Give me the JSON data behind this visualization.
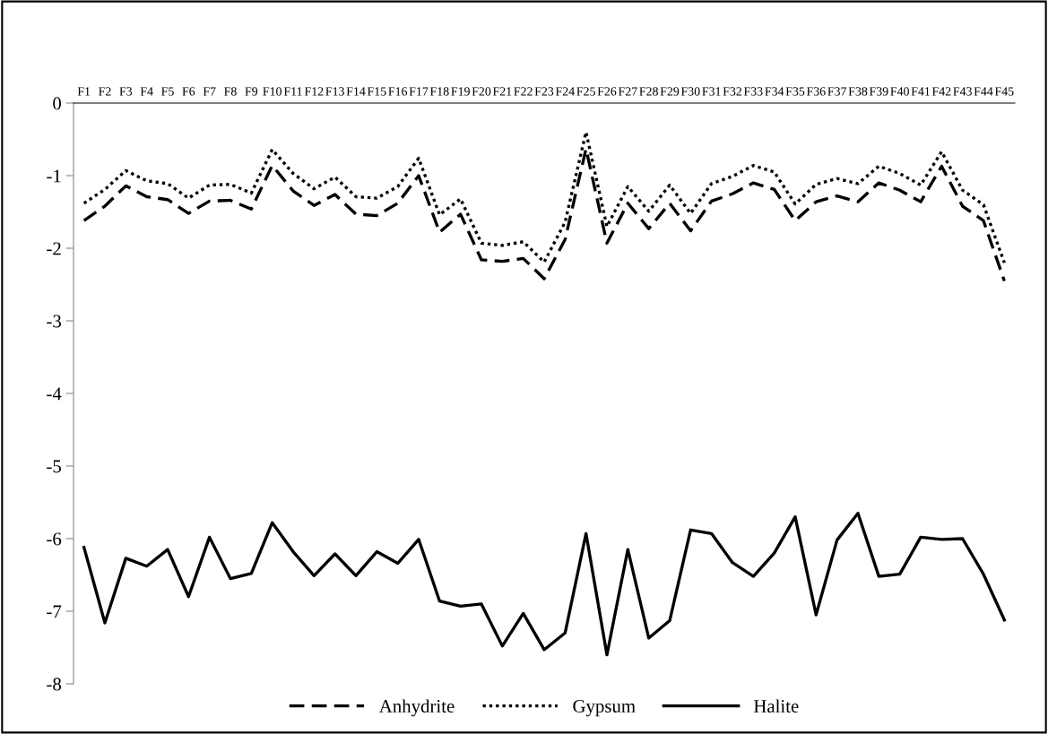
{
  "chart_data": {
    "type": "line",
    "categories": [
      "F1",
      "F2",
      "F3",
      "F4",
      "F5",
      "F6",
      "F7",
      "F8",
      "F9",
      "F10",
      "F11",
      "F12",
      "F13",
      "F14",
      "F15",
      "F16",
      "F17",
      "F18",
      "F19",
      "F20",
      "F21",
      "F22",
      "F23",
      "F24",
      "F25",
      "F26",
      "F27",
      "F28",
      "F29",
      "F30",
      "F31",
      "F32",
      "F33",
      "F34",
      "F35",
      "F36",
      "F37",
      "F38",
      "F39",
      "F40",
      "F41",
      "F42",
      "F43",
      "F44",
      "F45"
    ],
    "series": [
      {
        "name": "Anhydrite",
        "color": "#000000",
        "line_style": "dashed",
        "values": [
          -1.62,
          -1.42,
          -1.14,
          -1.29,
          -1.33,
          -1.52,
          -1.35,
          -1.34,
          -1.46,
          -0.86,
          -1.21,
          -1.41,
          -1.26,
          -1.53,
          -1.55,
          -1.38,
          -1.0,
          -1.78,
          -1.53,
          -2.16,
          -2.18,
          -2.14,
          -2.42,
          -1.88,
          -0.63,
          -1.93,
          -1.38,
          -1.73,
          -1.38,
          -1.76,
          -1.35,
          -1.25,
          -1.1,
          -1.19,
          -1.62,
          -1.36,
          -1.28,
          -1.36,
          -1.1,
          -1.2,
          -1.36,
          -0.87,
          -1.42,
          -1.62,
          -2.45
        ]
      },
      {
        "name": "Gypsum",
        "color": "#000000",
        "line_style": "dotted",
        "values": [
          -1.38,
          -1.19,
          -0.93,
          -1.07,
          -1.11,
          -1.31,
          -1.13,
          -1.12,
          -1.24,
          -0.64,
          -0.97,
          -1.18,
          -1.02,
          -1.29,
          -1.31,
          -1.15,
          -0.76,
          -1.54,
          -1.32,
          -1.93,
          -1.96,
          -1.91,
          -2.19,
          -1.64,
          -0.4,
          -1.7,
          -1.15,
          -1.49,
          -1.13,
          -1.52,
          -1.11,
          -1.01,
          -0.86,
          -0.95,
          -1.39,
          -1.12,
          -1.04,
          -1.11,
          -0.87,
          -0.97,
          -1.13,
          -0.67,
          -1.2,
          -1.4,
          -2.2
        ]
      },
      {
        "name": "Halite",
        "color": "#000000",
        "line_style": "solid",
        "values": [
          -6.12,
          -7.16,
          -6.27,
          -6.38,
          -6.15,
          -6.8,
          -5.98,
          -6.55,
          -6.48,
          -5.78,
          -6.18,
          -6.51,
          -6.21,
          -6.51,
          -6.18,
          -6.34,
          -6.01,
          -6.86,
          -6.93,
          -6.9,
          -7.48,
          -7.03,
          -7.53,
          -7.3,
          -5.93,
          -7.6,
          -6.15,
          -7.37,
          -7.13,
          -5.88,
          -5.93,
          -6.33,
          -6.52,
          -6.2,
          -5.7,
          -7.05,
          -6.02,
          -5.65,
          -6.52,
          -6.49,
          -5.98,
          -6.01,
          -6.0,
          -6.49,
          -7.12
        ]
      }
    ],
    "ylim": [
      -8,
      0
    ],
    "yticks": [
      0,
      -1,
      -2,
      -3,
      -4,
      -5,
      -6,
      -7,
      -8
    ],
    "grid": false,
    "legend": "bottom",
    "marker": "none"
  }
}
